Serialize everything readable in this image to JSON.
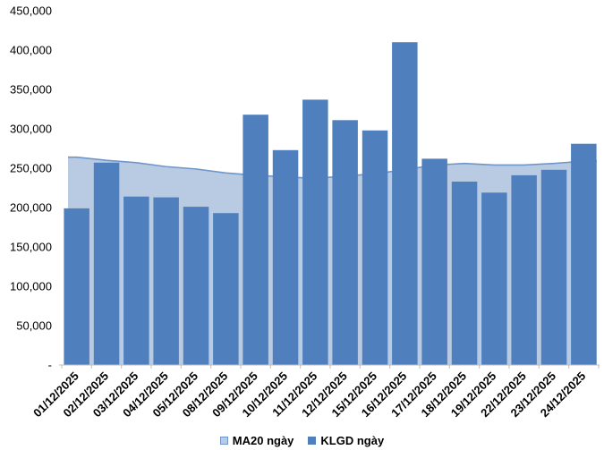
{
  "chart_data": {
    "type": "bar",
    "subtype": "column-with-area-overlay",
    "title": "",
    "categories": [
      "01/12/2025",
      "02/12/2025",
      "03/12/2025",
      "04/12/2025",
      "05/12/2025",
      "08/12/2025",
      "09/12/2025",
      "10/12/2025",
      "11/12/2025",
      "12/12/2025",
      "15/12/2025",
      "16/12/2025",
      "17/12/2025",
      "18/12/2025",
      "19/12/2025",
      "22/12/2025",
      "23/12/2025",
      "24/12/2025"
    ],
    "series": [
      {
        "name": "MA20 ngày",
        "type": "area",
        "values": [
          264000,
          260000,
          257000,
          252000,
          249000,
          244000,
          241000,
          239000,
          237000,
          240000,
          243000,
          248000,
          254000,
          256000,
          254000,
          254000,
          256000,
          259000
        ]
      },
      {
        "name": "KLGD ngày",
        "type": "column",
        "values": [
          199000,
          257000,
          214000,
          213000,
          201000,
          193000,
          318000,
          273000,
          337000,
          311000,
          298000,
          410000,
          262000,
          233000,
          219000,
          241000,
          248000,
          281000
        ]
      }
    ],
    "xlabel": "",
    "ylabel": "",
    "ylim": [
      0,
      450000
    ],
    "ytick_step": 50000,
    "ytick_labels": [
      "-",
      "50,000",
      "100,000",
      "150,000",
      "200,000",
      "250,000",
      "300,000",
      "350,000",
      "400,000",
      "450,000"
    ],
    "x_label_rotation": -45,
    "grid": false,
    "legend_position": "bottom-center"
  },
  "legend": {
    "items": [
      {
        "label": "MA20 ngày",
        "swatch": "light-blue-bordered-square"
      },
      {
        "label": "KLGD ngày",
        "swatch": "dark-blue-square"
      }
    ]
  },
  "colors": {
    "bar": "#4F80BD",
    "area_fill": "#B9CBE3",
    "area_line": "#6E96C8",
    "axis": "#BFBFBF",
    "text": "#000000",
    "background": "#FFFFFF"
  }
}
